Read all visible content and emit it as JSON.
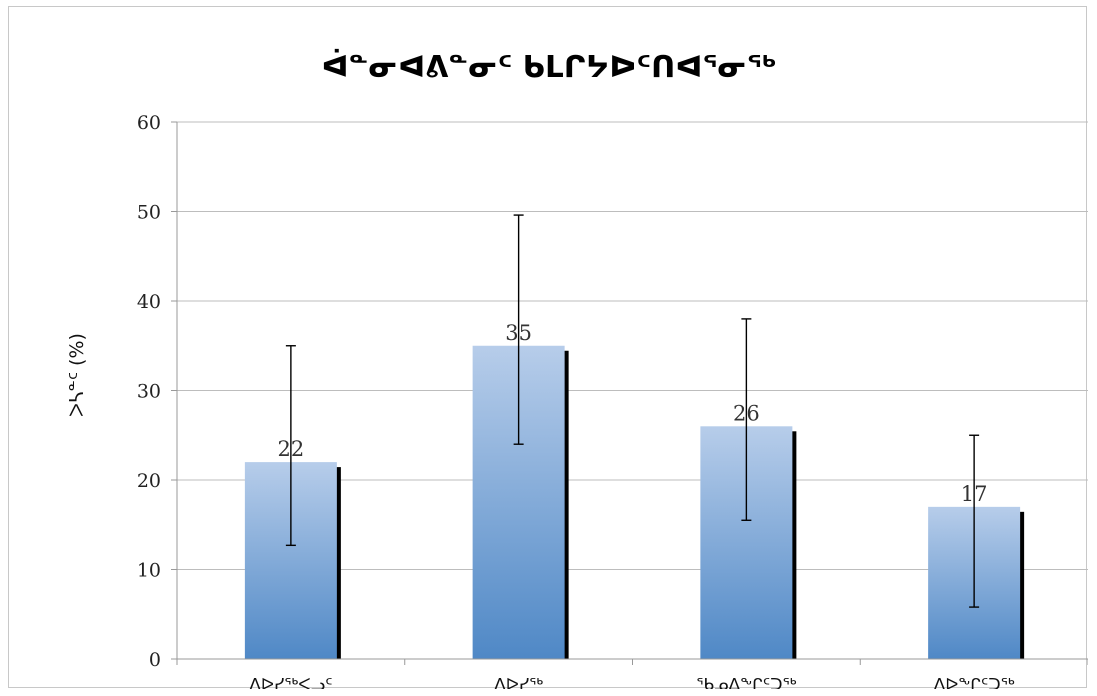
{
  "chart_data": {
    "type": "bar",
    "title": "ᐋᓐᓂᐊᕕᓐᓂᑦ ᑲᒪᒋᔭᐅᑦᑎᐊᕐᓂᖅ",
    "xlabel": "",
    "ylabel": "ᐳᓴᓐᑦ (%)",
    "ylim": [
      0,
      60
    ],
    "yticks": [
      0,
      10,
      20,
      30,
      40,
      50,
      60
    ],
    "grid": true,
    "legend": "none",
    "categories": [
      "ᐱᐅᓯᖅᐸᓗᑦ",
      "ᐱᐅᓯᖅ",
      "ᖃᓄᐃᖕᒋᑦᑐᖅ",
      "ᐱᐅᖕᒋᑦᑐᖅ"
    ],
    "values": [
      22,
      35,
      26,
      17
    ],
    "data_labels": [
      "22",
      "35",
      "26",
      "17"
    ],
    "error_bars": [
      {
        "low": 12.7,
        "high": 35
      },
      {
        "low": 24,
        "high": 49.6
      },
      {
        "low": 15.5,
        "high": 38
      },
      {
        "low": 5.8,
        "high": 25
      }
    ],
    "colors": {
      "bar_top": "#b7cdea",
      "bar_bottom": "#4f88c6",
      "bar_shadow": "#000000",
      "grid": "#bdbdbd",
      "error_bar": "#000000"
    }
  }
}
